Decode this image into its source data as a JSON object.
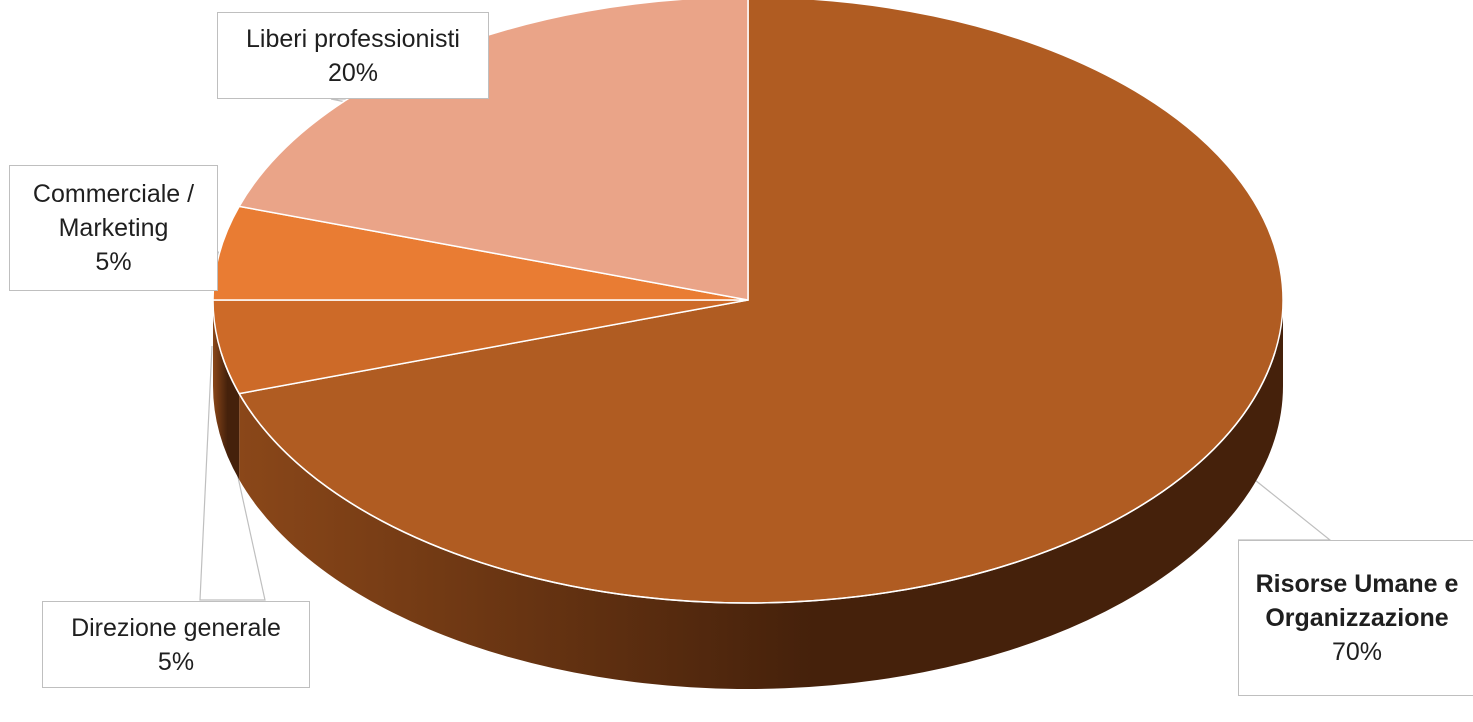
{
  "chart_data": {
    "type": "pie",
    "style": "3d",
    "title": "",
    "categories": [
      "Risorse Umane e Organizzazione",
      "Direzione generale",
      "Commerciale / Marketing",
      "Liberi professionisti"
    ],
    "values": [
      70,
      5,
      5,
      20
    ],
    "unit": "%",
    "legend": "none",
    "colors": {
      "Risorse Umane e Organizzazione": "#B05C22",
      "Direzione generale": "#CD6A28",
      "Commerciale / Marketing": "#E97C33",
      "Liberi professionisti": "#EAA488"
    },
    "side_colors": {
      "dark": "#45210B",
      "mid": "#8A4719"
    },
    "data_labels": [
      {
        "category": "Risorse Umane e Organizzazione",
        "lines": [
          "Risorse Umane e",
          "Organizzazione"
        ],
        "value_text": "70%",
        "bold_name": true
      },
      {
        "category": "Direzione generale",
        "lines": [
          "Direzione generale"
        ],
        "value_text": "5%",
        "bold_name": false
      },
      {
        "category": "Commerciale / Marketing",
        "lines": [
          "Commerciale /",
          "Marketing"
        ],
        "value_text": "5%",
        "bold_name": false
      },
      {
        "category": "Liberi professionisti",
        "lines": [
          "Liberi professionisti"
        ],
        "value_text": "20%",
        "bold_name": false
      }
    ]
  }
}
